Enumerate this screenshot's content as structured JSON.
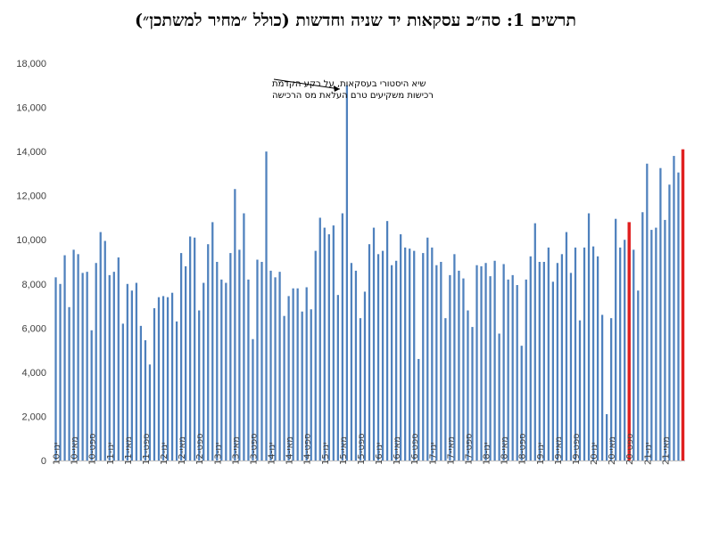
{
  "chart_data": {
    "type": "bar",
    "title": "תרשים 1: סה״כ עסקאות  יד שניה וחדשות (כולל ״מחיר למשתכן״)",
    "xlabel": "",
    "ylabel": "",
    "ylim": [
      0,
      18000
    ],
    "yticks": [
      "0",
      "2,000",
      "4,000",
      "6,000",
      "8,000",
      "10,000",
      "12,000",
      "14,000",
      "16,000",
      "18,000"
    ],
    "grid": false,
    "legend": "none",
    "colors": {
      "bar": "#4f81bd",
      "highlight": "#e02020",
      "axis": "#bfbfbf",
      "text": "#404040"
    },
    "highlight_indices": [
      128,
      140
    ],
    "annotation": {
      "lines": [
        "שיא היסטורי בעסקאות, על רקע הקדמת",
        "רכישות משקיעים טרם העלאת מס הרכישה"
      ],
      "target_index": 65
    },
    "tick_labels": [
      {
        "index": 0,
        "label": "ינו-10"
      },
      {
        "index": 4,
        "label": "מאי-10"
      },
      {
        "index": 8,
        "label": "ספט-10"
      },
      {
        "index": 12,
        "label": "ינו-11"
      },
      {
        "index": 16,
        "label": "מאי-11"
      },
      {
        "index": 20,
        "label": "ספט-11"
      },
      {
        "index": 24,
        "label": "ינו-12"
      },
      {
        "index": 28,
        "label": "מאי-12"
      },
      {
        "index": 32,
        "label": "ספט-12"
      },
      {
        "index": 36,
        "label": "ינו-13"
      },
      {
        "index": 40,
        "label": "מאי-13"
      },
      {
        "index": 44,
        "label": "ספט-13"
      },
      {
        "index": 48,
        "label": "ינו-14"
      },
      {
        "index": 52,
        "label": "מאי-14"
      },
      {
        "index": 56,
        "label": "ספט-14"
      },
      {
        "index": 60,
        "label": "ינו-15"
      },
      {
        "index": 64,
        "label": "מאי-15"
      },
      {
        "index": 68,
        "label": "ספט-15"
      },
      {
        "index": 72,
        "label": "ינו-16"
      },
      {
        "index": 76,
        "label": "מאי-16"
      },
      {
        "index": 80,
        "label": "ספט-16"
      },
      {
        "index": 84,
        "label": "ינו-17"
      },
      {
        "index": 88,
        "label": "מאי-17"
      },
      {
        "index": 92,
        "label": "ספט-17"
      },
      {
        "index": 96,
        "label": "ינו-18"
      },
      {
        "index": 100,
        "label": "מאי-18"
      },
      {
        "index": 104,
        "label": "ספט-18"
      },
      {
        "index": 108,
        "label": "ינו-19"
      },
      {
        "index": 112,
        "label": "מאי-19"
      },
      {
        "index": 116,
        "label": "ספט-19"
      },
      {
        "index": 120,
        "label": "ינו-20"
      },
      {
        "index": 124,
        "label": "מאי-20"
      },
      {
        "index": 128,
        "label": "ספט-20"
      },
      {
        "index": 132,
        "label": "ינו-21"
      },
      {
        "index": 136,
        "label": "מאי-21"
      }
    ],
    "values": [
      8300,
      8000,
      9300,
      6950,
      9550,
      9350,
      8500,
      8550,
      5900,
      8950,
      10350,
      9950,
      8400,
      8550,
      9200,
      6200,
      8000,
      7700,
      8050,
      6100,
      5450,
      4350,
      6900,
      7400,
      7450,
      7400,
      7600,
      6300,
      9400,
      8800,
      10150,
      10100,
      6800,
      8050,
      9800,
      10800,
      9000,
      8200,
      8050,
      9400,
      12300,
      9550,
      11200,
      8200,
      5500,
      9100,
      9000,
      14000,
      8600,
      8300,
      8550,
      6550,
      7450,
      7800,
      7800,
      6750,
      7850,
      6850,
      9500,
      11000,
      10550,
      10250,
      10650,
      7500,
      11200,
      17000,
      8950,
      8600,
      6450,
      7650,
      9800,
      10550,
      9350,
      9500,
      10850,
      8850,
      9050,
      10250,
      9650,
      9600,
      9500,
      4600,
      9400,
      10100,
      9650,
      8850,
      9000,
      6450,
      8400,
      9350,
      8600,
      8250,
      6800,
      6050,
      8850,
      8800,
      8950,
      8350,
      9050,
      5750,
      8900,
      8200,
      8400,
      7950,
      5200,
      8200,
      9250,
      10750,
      9000,
      9000,
      9650,
      8100,
      8950,
      9350,
      10350,
      8500,
      9650,
      6350,
      9650,
      11200,
      9700,
      9250,
      6600,
      2100,
      6450,
      10950,
      9650,
      10000,
      10800,
      9550,
      7700,
      11250,
      13450,
      10450,
      10550,
      13250,
      10900,
      12500,
      13800,
      13050,
      14100
    ]
  }
}
